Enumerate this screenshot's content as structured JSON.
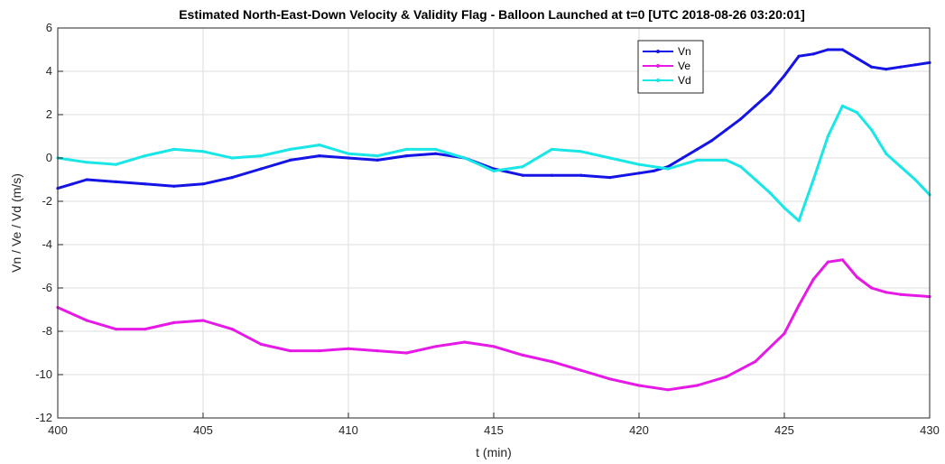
{
  "chart_data": {
    "type": "line",
    "title": "Estimated North-East-Down Velocity & Validity Flag - Balloon Launched at t=0 [UTC 2018-08-26 03:20:01]",
    "xlabel": "t (min)",
    "ylabel": "Vn / Ve / Vd (m/s)",
    "xlim": [
      400,
      430
    ],
    "ylim": [
      -12,
      6
    ],
    "xticks": [
      "400",
      "405",
      "410",
      "415",
      "420",
      "425",
      "430"
    ],
    "yticks": [
      "6",
      "4",
      "2",
      "0",
      "-2",
      "-4",
      "-6",
      "-8",
      "-10",
      "-12"
    ],
    "grid": true,
    "legend_position": "top-right",
    "series": [
      {
        "name": "Vn",
        "color": "#1414e6",
        "x": [
          400,
          400.5,
          401,
          402,
          403,
          404,
          405,
          406,
          407,
          408,
          409,
          410,
          411,
          412,
          413,
          414,
          415,
          416,
          417,
          418,
          419,
          420,
          420.5,
          421,
          421.5,
          422,
          422.5,
          423,
          423.5,
          424,
          424.5,
          425,
          425.5,
          426,
          426.5,
          427,
          427.5,
          428,
          428.5,
          429,
          429.5,
          430
        ],
        "y": [
          -1.4,
          -1.2,
          -1.0,
          -1.1,
          -1.2,
          -1.3,
          -1.2,
          -0.9,
          -0.5,
          -0.1,
          0.1,
          0.0,
          -0.1,
          0.1,
          0.2,
          0.0,
          -0.5,
          -0.8,
          -0.8,
          -0.8,
          -0.9,
          -0.7,
          -0.6,
          -0.4,
          0.0,
          0.4,
          0.8,
          1.3,
          1.8,
          2.4,
          3.0,
          3.8,
          4.7,
          4.8,
          5.0,
          5.0,
          4.6,
          4.2,
          4.1,
          4.2,
          4.3,
          4.4
        ]
      },
      {
        "name": "Ve",
        "color": "#e619e6",
        "x": [
          400,
          401,
          402,
          403,
          404,
          405,
          406,
          407,
          408,
          409,
          410,
          411,
          412,
          413,
          414,
          415,
          416,
          417,
          418,
          419,
          420,
          421,
          421.5,
          422,
          423,
          424,
          425,
          425.5,
          426,
          426.5,
          427,
          427.5,
          428,
          428.5,
          429,
          430
        ],
        "y": [
          -6.9,
          -7.5,
          -7.9,
          -7.9,
          -7.6,
          -7.5,
          -7.9,
          -8.6,
          -8.9,
          -8.9,
          -8.8,
          -8.9,
          -9.0,
          -8.7,
          -8.5,
          -8.7,
          -9.1,
          -9.4,
          -9.8,
          -10.2,
          -10.5,
          -10.7,
          -10.6,
          -10.5,
          -10.1,
          -9.4,
          -8.1,
          -6.8,
          -5.6,
          -4.8,
          -4.7,
          -5.5,
          -6.0,
          -6.2,
          -6.3,
          -6.4
        ]
      },
      {
        "name": "Vd",
        "color": "#19e6e6",
        "x": [
          400,
          401,
          402,
          403,
          404,
          405,
          406,
          407,
          408,
          409,
          410,
          411,
          412,
          413,
          414,
          415,
          416,
          417,
          418,
          419,
          420,
          421,
          422,
          423,
          423.5,
          424,
          424.5,
          425,
          425.5,
          426,
          426.5,
          427,
          427.5,
          428,
          428.5,
          429,
          429.5,
          430
        ],
        "y": [
          0.0,
          -0.2,
          -0.3,
          0.1,
          0.4,
          0.3,
          0.0,
          0.1,
          0.4,
          0.6,
          0.2,
          0.1,
          0.4,
          0.4,
          0.0,
          -0.6,
          -0.4,
          0.4,
          0.3,
          0.0,
          -0.3,
          -0.5,
          -0.1,
          -0.1,
          -0.4,
          -1.0,
          -1.6,
          -2.3,
          -2.9,
          -1.0,
          1.0,
          2.4,
          2.1,
          1.3,
          0.2,
          -0.4,
          -1.0,
          -1.7
        ]
      }
    ]
  }
}
